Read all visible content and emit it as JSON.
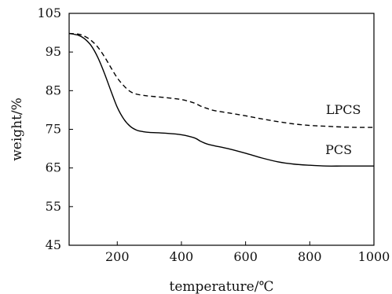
{
  "chart_data": {
    "type": "line",
    "xlabel": "temperature/℃",
    "ylabel": "weight/%",
    "xlim": [
      50,
      1000
    ],
    "ylim": [
      45,
      105
    ],
    "xticks": [
      200,
      400,
      600,
      800,
      1000
    ],
    "yticks": [
      45,
      55,
      65,
      75,
      85,
      95,
      105
    ],
    "xtick_labels": [
      "200",
      "400",
      "600",
      "800",
      "1000"
    ],
    "ytick_labels": [
      "45",
      "55",
      "65",
      "75",
      "85",
      "95",
      "105"
    ],
    "grid": false,
    "series": [
      {
        "name": "PCS",
        "style": "solid",
        "color": "#000000",
        "x": [
          50,
          80,
          100,
          120,
          140,
          160,
          180,
          200,
          220,
          240,
          260,
          280,
          300,
          350,
          400,
          440,
          460,
          480,
          500,
          550,
          600,
          650,
          700,
          750,
          800,
          850,
          900,
          950,
          1000
        ],
        "y": [
          99.8,
          99.3,
          98.3,
          96.5,
          93.5,
          89.5,
          85.0,
          80.7,
          77.7,
          75.8,
          74.8,
          74.4,
          74.2,
          74.0,
          73.6,
          72.8,
          71.9,
          71.2,
          70.8,
          69.9,
          68.8,
          67.6,
          66.6,
          66.0,
          65.7,
          65.5,
          65.5,
          65.5,
          65.5
        ]
      },
      {
        "name": "LPCS",
        "style": "dashed",
        "color": "#000000",
        "x": [
          50,
          80,
          100,
          120,
          140,
          160,
          180,
          200,
          220,
          240,
          260,
          280,
          300,
          350,
          400,
          440,
          460,
          480,
          500,
          550,
          600,
          650,
          700,
          750,
          800,
          850,
          900,
          950,
          1000
        ],
        "y": [
          99.8,
          99.6,
          99.0,
          97.9,
          96.2,
          93.8,
          91.0,
          88.3,
          86.3,
          84.8,
          84.1,
          83.8,
          83.6,
          83.2,
          82.7,
          81.8,
          81.0,
          80.4,
          79.9,
          79.2,
          78.5,
          77.7,
          77.0,
          76.4,
          76.0,
          75.8,
          75.6,
          75.5,
          75.5
        ]
      }
    ],
    "annotations": [
      {
        "text": "LPCS",
        "x": 905,
        "y": 79
      },
      {
        "text": "PCS",
        "x": 890,
        "y": 68.6
      }
    ]
  }
}
